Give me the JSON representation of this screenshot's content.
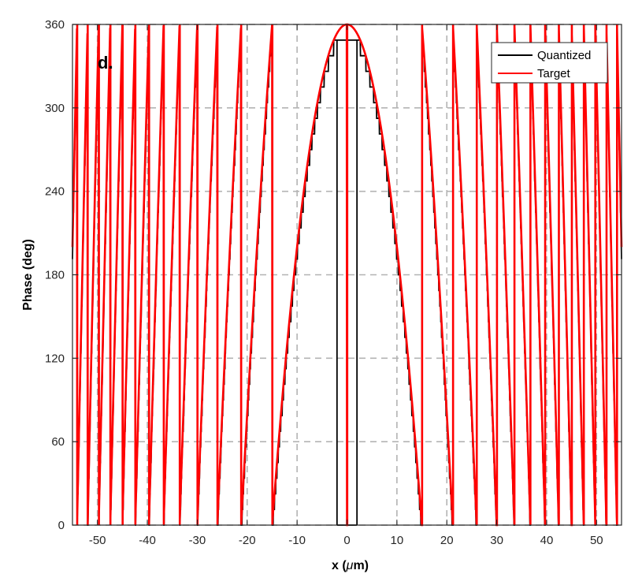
{
  "chart_data": {
    "type": "line",
    "panel_label": "d.",
    "xlabel_prefix": "x (",
    "xlabel_symbol": "μ",
    "xlabel_suffix": "m)",
    "ylabel": "Phase (deg)",
    "xlim": [
      -55,
      55
    ],
    "ylim": [
      0,
      360
    ],
    "xticks": [
      -50,
      -40,
      -30,
      -20,
      -10,
      0,
      10,
      20,
      30,
      40,
      50
    ],
    "yticks": [
      0,
      60,
      120,
      180,
      240,
      300,
      360
    ],
    "grid": true,
    "grid_style": "dashed",
    "legend_position": "top-right",
    "series": [
      {
        "name": "Quantized",
        "color": "#000000",
        "quantization_levels": 32
      },
      {
        "name": "Target",
        "color": "#ff0000"
      }
    ],
    "target_phase_model": {
      "formula": "mod(360 - k*x^2, 360)",
      "k": 1.6,
      "x_step": 0.05
    },
    "wrap_x_positions": [
      -50.3,
      -43.5,
      -35.6,
      -35.0,
      -34.2,
      -26.0,
      -21.2,
      -15.0,
      15.0,
      21.2,
      26.0,
      34.2,
      35.0,
      35.6,
      43.5,
      50.3
    ],
    "center_zone_bounds": [
      -2,
      2
    ]
  }
}
